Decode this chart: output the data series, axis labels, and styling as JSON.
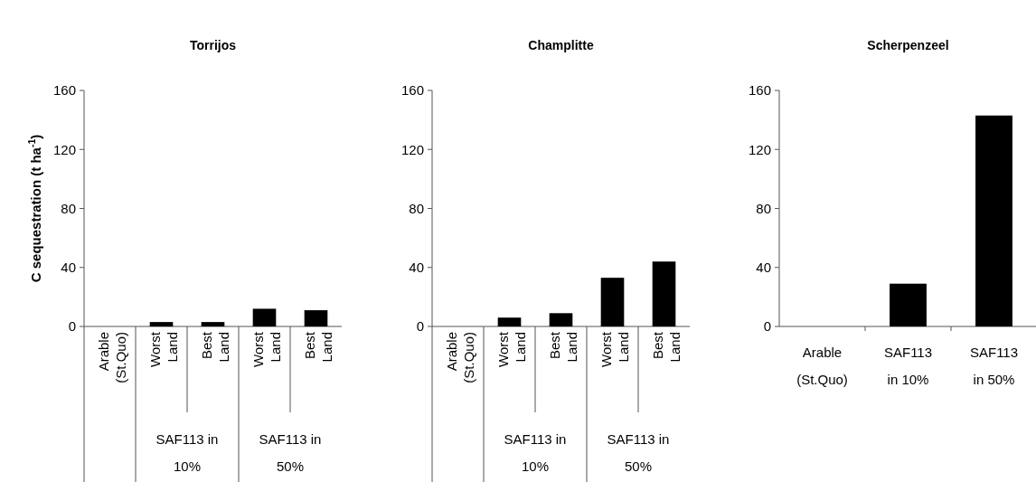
{
  "chart_data": [
    {
      "type": "bar",
      "title": "Torrijos",
      "ylabel": "C sequestration (t ha$^{-1}$)",
      "categories": [
        "Arable (St.Quo)",
        "Worst Land",
        "Best Land",
        "Worst Land",
        "Best Land"
      ],
      "values": [
        0,
        3,
        3,
        12,
        11
      ],
      "color": "#000000",
      "ylim": [
        0,
        160
      ],
      "yticks": [
        0,
        40,
        80,
        120,
        160
      ],
      "annotations": [
        "SAF113 in 10%",
        "SAF113 in 50%"
      ]
    },
    {
      "type": "bar",
      "title": "Champlitte",
      "categories": [
        "Arable (St.Quo)",
        "Worst Land",
        "Best Land",
        "Worst Land",
        "Best Land"
      ],
      "values": [
        0,
        6,
        9,
        33,
        44
      ],
      "color": "#000000",
      "ylim": [
        0,
        160
      ],
      "yticks": [
        0,
        40,
        80,
        120,
        160
      ],
      "annotations": [
        "SAF113 in 10%",
        "SAF113 in 50%"
      ]
    },
    {
      "type": "bar",
      "title": "Scherpenzeel",
      "categories": [
        "Arable (St.Quo)",
        "SAF113 in 10%",
        "SAF113 in 50%"
      ],
      "values": [
        0,
        29,
        143
      ],
      "color": "#000000",
      "ylim": [
        0,
        160
      ],
      "yticks": [
        0,
        40,
        80,
        120,
        160
      ]
    }
  ]
}
